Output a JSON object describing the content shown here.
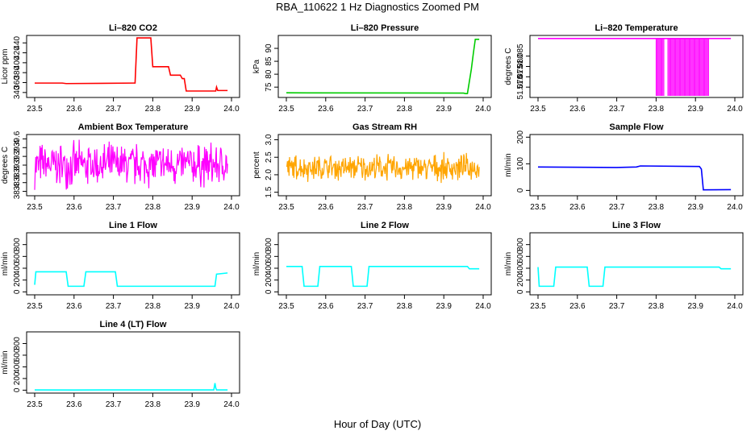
{
  "figure": {
    "title": "RBA_110622  1 Hz Diagnostics Zoomed PM",
    "xlabel": "Hour of Day (UTC)"
  },
  "chart_data": [
    {
      "type": "line",
      "title": "Li–820 CO2",
      "ylabel": "Licor ppm",
      "xlim": [
        23.5,
        24.0
      ],
      "ylim": [
        330,
        455
      ],
      "xticks": [
        "23.5",
        "23.6",
        "23.7",
        "23.8",
        "23.9",
        "24.0"
      ],
      "yticks": [
        {
          "v": 340,
          "l": "340"
        },
        {
          "v": 360,
          "l": "360"
        },
        {
          "v": 380,
          "l": "380"
        },
        {
          "v": 400,
          "l": "400"
        },
        {
          "v": 420,
          "l": "420"
        },
        {
          "v": 440,
          "l": "440"
        }
      ],
      "color": "#ff0000",
      "series": [
        {
          "name": "CO2",
          "x": [
            23.5,
            23.57,
            23.58,
            23.75,
            23.755,
            23.76,
            23.795,
            23.8,
            23.84,
            23.845,
            23.87,
            23.875,
            23.88,
            23.885,
            23.96,
            23.962,
            23.965,
            23.99
          ],
          "y": [
            359,
            359,
            358,
            359,
            359,
            450,
            450,
            392,
            392,
            375,
            375,
            368,
            368,
            343,
            343,
            351,
            344,
            344
          ]
        }
      ]
    },
    {
      "type": "line",
      "title": "Li–820 Pressure",
      "ylabel": "kPa",
      "xlim": [
        23.5,
        24.0
      ],
      "ylim": [
        71,
        95
      ],
      "xticks": [
        "23.5",
        "23.6",
        "23.7",
        "23.8",
        "23.9",
        "24.0"
      ],
      "yticks": [
        {
          "v": 75,
          "l": "75"
        },
        {
          "v": 80,
          "l": "80"
        },
        {
          "v": 85,
          "l": "85"
        },
        {
          "v": 90,
          "l": "90"
        }
      ],
      "color": "#00cc00",
      "series": [
        {
          "name": "Pressure",
          "x": [
            23.5,
            23.95,
            23.955,
            23.96,
            23.97,
            23.975,
            23.98,
            23.99
          ],
          "y": [
            72.8,
            72.7,
            72.5,
            72.5,
            82,
            88,
            93.5,
            93.5
          ]
        }
      ]
    },
    {
      "type": "line",
      "title": "Li–820 Temperature",
      "ylabel": "degrees C",
      "xlim": [
        23.5,
        24.0
      ],
      "ylim": [
        51.065,
        51.095
      ],
      "xticks": [
        "23.5",
        "23.6",
        "23.7",
        "23.8",
        "23.9",
        "24.0"
      ],
      "yticks": [
        {
          "v": 51.07,
          "l": "51.070"
        },
        {
          "v": 51.075,
          "l": "51.075"
        },
        {
          "v": 51.08,
          "l": "51.080"
        },
        {
          "v": 51.085,
          "l": "51.085"
        }
      ],
      "color": "#ff00ff",
      "series": [
        {
          "name": "Temperature",
          "x": [
            23.5,
            23.99
          ],
          "y": [
            51.0935,
            51.0935
          ]
        }
      ],
      "dropouts": [
        [
          23.8,
          23.82
        ],
        [
          23.83,
          23.935
        ]
      ]
    },
    {
      "type": "line",
      "title": "Ambient Box Temperature",
      "ylabel": "degrees C",
      "xlim": [
        23.5,
        24.0
      ],
      "ylim": [
        38.3,
        39.7
      ],
      "xticks": [
        "23.5",
        "23.6",
        "23.7",
        "23.8",
        "23.9",
        "24.0"
      ],
      "yticks": [
        {
          "v": 38.4,
          "l": "38.4"
        },
        {
          "v": 38.6,
          "l": "38.6"
        },
        {
          "v": 38.8,
          "l": "38.8"
        },
        {
          "v": 39.0,
          "l": "39.0"
        },
        {
          "v": 39.2,
          "l": "39.2"
        },
        {
          "v": 39.4,
          "l": "39.4"
        },
        {
          "v": 39.6,
          "l": "39.6"
        }
      ],
      "color": "#ff00ff",
      "series": [
        {
          "name": "Box Temp",
          "center": 39.0,
          "spread": 0.6,
          "x": [
            23.5,
            23.99
          ]
        }
      ]
    },
    {
      "type": "line",
      "title": "Gas Stream RH",
      "ylabel": "percent",
      "xlim": [
        23.5,
        24.0
      ],
      "ylim": [
        1.4,
        3.15
      ],
      "xticks": [
        "23.5",
        "23.6",
        "23.7",
        "23.8",
        "23.9",
        "24.0"
      ],
      "yticks": [
        {
          "v": 1.5,
          "l": "1.5"
        },
        {
          "v": 2.0,
          "l": "2.0"
        },
        {
          "v": 2.5,
          "l": "2.5"
        },
        {
          "v": 3.0,
          "l": "3.0"
        }
      ],
      "color": "#ffa500",
      "series": [
        {
          "name": "RH",
          "center": 2.2,
          "spread": 0.45,
          "x": [
            23.5,
            23.99
          ]
        }
      ]
    },
    {
      "type": "line",
      "title": "Sample Flow",
      "ylabel": "ml/min",
      "xlim": [
        23.5,
        24.0
      ],
      "ylim": [
        -20,
        210
      ],
      "xticks": [
        "23.5",
        "23.6",
        "23.7",
        "23.8",
        "23.9",
        "24.0"
      ],
      "yticks": [
        {
          "v": 0,
          "l": "0"
        },
        {
          "v": 100,
          "l": "100"
        },
        {
          "v": 200,
          "l": "200"
        }
      ],
      "color": "#0000ff",
      "series": [
        {
          "name": "Sample Flow",
          "x": [
            23.5,
            23.7,
            23.75,
            23.76,
            23.91,
            23.915,
            23.92,
            23.99
          ],
          "y": [
            88,
            86,
            88,
            92,
            90,
            80,
            2,
            3
          ]
        }
      ]
    },
    {
      "type": "line",
      "title": "Line 1 Flow",
      "ylabel": "ml/min",
      "xlim": [
        23.5,
        24.0
      ],
      "ylim": [
        -50,
        1000
      ],
      "xticks": [
        "23.5",
        "23.6",
        "23.7",
        "23.8",
        "23.9",
        "24.0"
      ],
      "yticks": [
        {
          "v": 0,
          "l": "0"
        },
        {
          "v": 200,
          "l": "200"
        },
        {
          "v": 400,
          "l": "400"
        },
        {
          "v": 600,
          "l": "600"
        },
        {
          "v": 800,
          "l": "800"
        }
      ],
      "color": "#00ffff",
      "series": [
        {
          "name": "Line 1",
          "x": [
            23.5,
            23.503,
            23.58,
            23.585,
            23.625,
            23.63,
            23.705,
            23.71,
            23.958,
            23.962,
            23.99
          ],
          "y": [
            120,
            340,
            340,
            95,
            95,
            340,
            340,
            95,
            95,
            300,
            320
          ]
        }
      ]
    },
    {
      "type": "line",
      "title": "Line 2 Flow",
      "ylabel": "ml/min",
      "xlim": [
        23.5,
        24.0
      ],
      "ylim": [
        -50,
        1000
      ],
      "xticks": [
        "23.5",
        "23.6",
        "23.7",
        "23.8",
        "23.9",
        "24.0"
      ],
      "yticks": [
        {
          "v": 0,
          "l": "0"
        },
        {
          "v": 200,
          "l": "200"
        },
        {
          "v": 400,
          "l": "400"
        },
        {
          "v": 600,
          "l": "600"
        },
        {
          "v": 800,
          "l": "800"
        }
      ],
      "color": "#00ffff",
      "series": [
        {
          "name": "Line 2",
          "x": [
            23.5,
            23.54,
            23.545,
            23.58,
            23.585,
            23.665,
            23.67,
            23.705,
            23.71,
            23.96,
            23.965,
            23.99
          ],
          "y": [
            430,
            430,
            95,
            95,
            430,
            430,
            95,
            95,
            430,
            430,
            390,
            390
          ]
        }
      ]
    },
    {
      "type": "line",
      "title": "Line 3 Flow",
      "ylabel": "ml/min",
      "xlim": [
        23.5,
        24.0
      ],
      "ylim": [
        -50,
        1000
      ],
      "xticks": [
        "23.5",
        "23.6",
        "23.7",
        "23.8",
        "23.9",
        "24.0"
      ],
      "yticks": [
        {
          "v": 0,
          "l": "0"
        },
        {
          "v": 200,
          "l": "200"
        },
        {
          "v": 400,
          "l": "400"
        },
        {
          "v": 600,
          "l": "600"
        },
        {
          "v": 800,
          "l": "800"
        }
      ],
      "color": "#00ffff",
      "series": [
        {
          "name": "Line 3",
          "x": [
            23.5,
            23.503,
            23.54,
            23.545,
            23.625,
            23.63,
            23.665,
            23.67,
            23.96,
            23.965,
            23.99
          ],
          "y": [
            420,
            95,
            95,
            420,
            420,
            95,
            95,
            420,
            420,
            390,
            390
          ]
        }
      ]
    },
    {
      "type": "line",
      "title": "Line 4 (LT) Flow",
      "ylabel": "ml/min",
      "xlim": [
        23.5,
        24.0
      ],
      "ylim": [
        -50,
        1000
      ],
      "xticks": [
        "23.5",
        "23.6",
        "23.7",
        "23.8",
        "23.9",
        "24.0"
      ],
      "yticks": [
        {
          "v": 0,
          "l": "0"
        },
        {
          "v": 200,
          "l": "200"
        },
        {
          "v": 400,
          "l": "400"
        },
        {
          "v": 600,
          "l": "600"
        },
        {
          "v": 800,
          "l": "800"
        }
      ],
      "color": "#00ffff",
      "series": [
        {
          "name": "Line 4",
          "x": [
            23.5,
            23.6,
            23.7,
            23.955,
            23.958,
            23.96,
            23.962,
            23.99
          ],
          "y": [
            5,
            2,
            5,
            5,
            120,
            40,
            5,
            5
          ]
        }
      ]
    }
  ]
}
